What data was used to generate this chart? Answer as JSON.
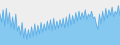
{
  "line_color": "#5baee8",
  "fill_color": "#85c8f0",
  "background_color": "#eeeeee",
  "linewidth": 0.6,
  "values": [
    72,
    60,
    78,
    55,
    80,
    58,
    74,
    52,
    68,
    50,
    72,
    48,
    55,
    42,
    60,
    38,
    52,
    36,
    50,
    38,
    54,
    40,
    58,
    42,
    56,
    44,
    60,
    46,
    58,
    48,
    62,
    50,
    64,
    48,
    66,
    50,
    62,
    52,
    64,
    54,
    66,
    52,
    68,
    54,
    72,
    56,
    70,
    58,
    74,
    62,
    76,
    64,
    74,
    66,
    78,
    64,
    72,
    68,
    76,
    66,
    68,
    58,
    50,
    72,
    58,
    76,
    62,
    80,
    66,
    78,
    70,
    82,
    68,
    76,
    72,
    84,
    70
  ],
  "ylim_min": 28,
  "ylim_max": 92
}
